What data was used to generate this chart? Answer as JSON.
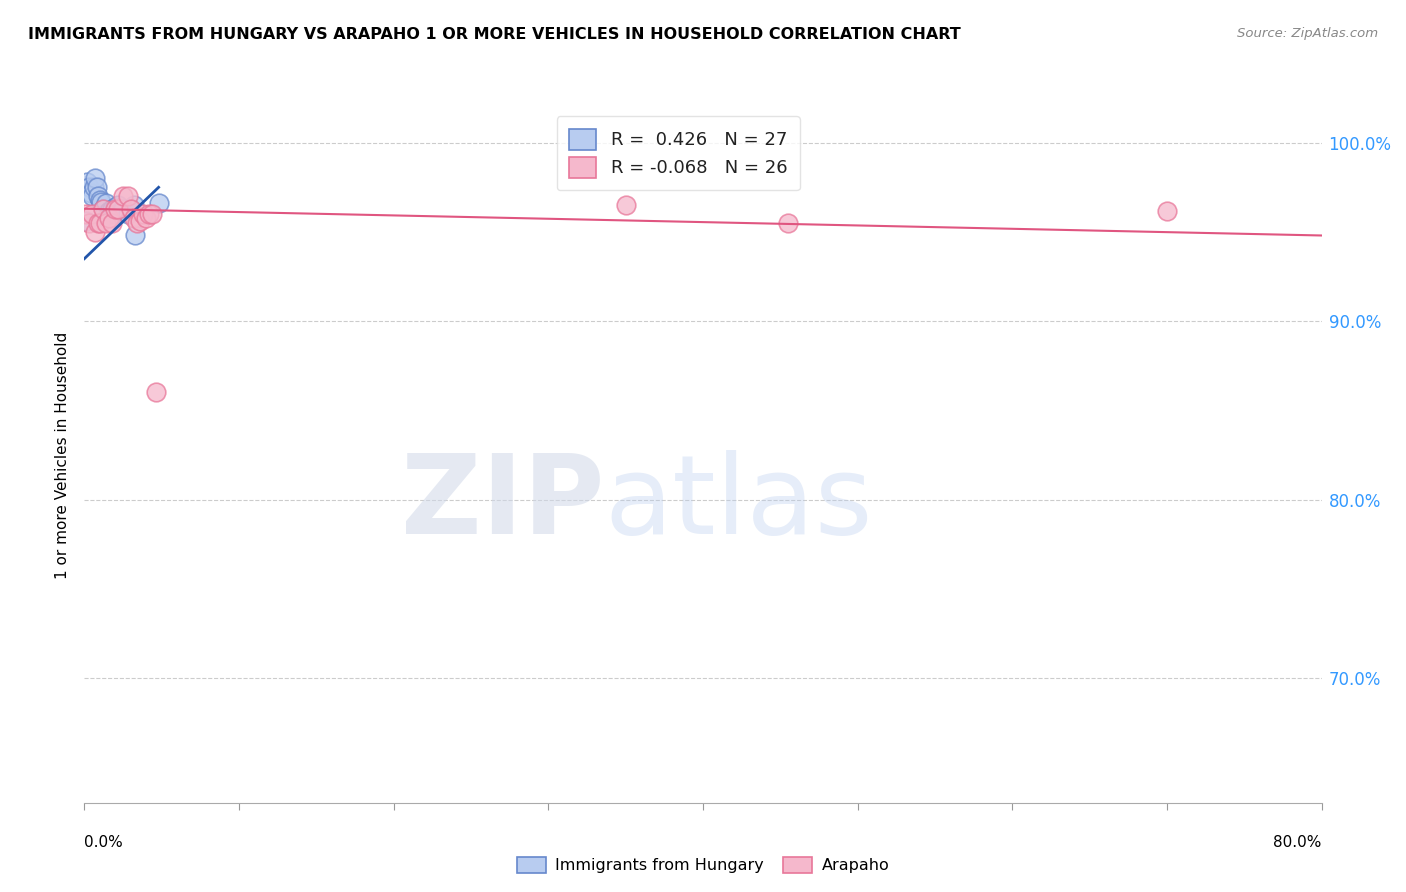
{
  "title": "IMMIGRANTS FROM HUNGARY VS ARAPAHO 1 OR MORE VEHICLES IN HOUSEHOLD CORRELATION CHART",
  "source": "Source: ZipAtlas.com",
  "ylabel": "1 or more Vehicles in Household",
  "legend_hungary": {
    "R": 0.426,
    "N": 27
  },
  "legend_arapaho": {
    "R": -0.068,
    "N": 26
  },
  "background_color": "#ffffff",
  "blue_scatter_x": [
    0.001,
    0.002,
    0.003,
    0.004,
    0.005,
    0.006,
    0.007,
    0.008,
    0.009,
    0.01,
    0.011,
    0.012,
    0.013,
    0.014,
    0.015,
    0.016,
    0.018,
    0.019,
    0.02,
    0.022,
    0.024,
    0.025,
    0.028,
    0.03,
    0.032,
    0.033,
    0.048
  ],
  "blue_scatter_y": [
    0.956,
    0.978,
    0.975,
    0.972,
    0.97,
    0.975,
    0.98,
    0.975,
    0.97,
    0.968,
    0.967,
    0.963,
    0.96,
    0.966,
    0.96,
    0.962,
    0.963,
    0.96,
    0.964,
    0.965,
    0.962,
    0.963,
    0.96,
    0.963,
    0.965,
    0.948,
    0.966
  ],
  "pink_scatter_x": [
    0.001,
    0.003,
    0.005,
    0.007,
    0.009,
    0.01,
    0.012,
    0.014,
    0.016,
    0.018,
    0.02,
    0.022,
    0.025,
    0.028,
    0.03,
    0.032,
    0.034,
    0.036,
    0.038,
    0.04,
    0.042,
    0.044,
    0.046,
    0.35,
    0.455,
    0.7
  ],
  "pink_scatter_y": [
    0.96,
    0.955,
    0.96,
    0.95,
    0.955,
    0.955,
    0.963,
    0.955,
    0.958,
    0.955,
    0.963,
    0.963,
    0.97,
    0.97,
    0.963,
    0.958,
    0.955,
    0.956,
    0.96,
    0.958,
    0.96,
    0.96,
    0.86,
    0.965,
    0.955,
    0.962
  ],
  "xlim": [
    0.0,
    0.8
  ],
  "ylim": [
    0.63,
    1.02
  ],
  "ytick_vals": [
    0.7,
    0.8,
    0.9,
    1.0
  ],
  "ytick_labels": [
    "70.0%",
    "80.0%",
    "90.0%",
    "100.0%"
  ],
  "xtick_positions": [
    0.0,
    0.1,
    0.2,
    0.3,
    0.4,
    0.5,
    0.6,
    0.7,
    0.8
  ],
  "blue_line_x": [
    0.0,
    0.048
  ],
  "blue_line_y": [
    0.935,
    0.975
  ],
  "pink_line_x": [
    0.0,
    0.8
  ],
  "pink_line_y": [
    0.963,
    0.948
  ]
}
